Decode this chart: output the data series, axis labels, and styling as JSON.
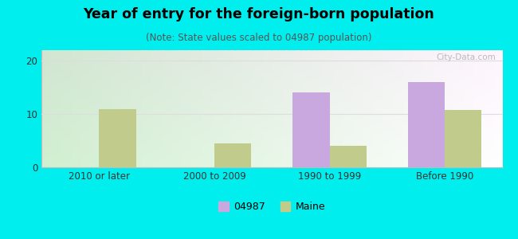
{
  "title": "Year of entry for the foreign-born population",
  "subtitle": "(Note: State values scaled to 04987 population)",
  "categories": [
    "2010 or later",
    "2000 to 2009",
    "1990 to 1999",
    "Before 1990"
  ],
  "values_04987": [
    0,
    0,
    14,
    16
  ],
  "values_maine": [
    11,
    4.5,
    4,
    10.8
  ],
  "color_04987": "#c9a8e0",
  "color_maine": "#c0cb8c",
  "background_color": "#00eeee",
  "ylim": [
    0,
    22
  ],
  "yticks": [
    0,
    10,
    20
  ],
  "bar_width": 0.32,
  "legend_label_04987": "04987",
  "legend_label_maine": "Maine",
  "watermark": "City-Data.com"
}
